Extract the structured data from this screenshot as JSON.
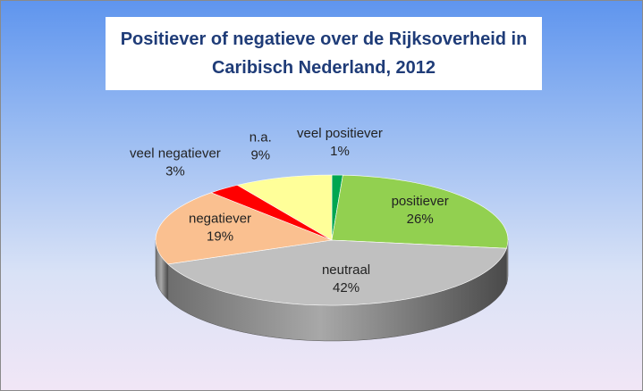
{
  "chart_data": {
    "type": "pie",
    "title": "Positiever of negatieve over de Rijksoverheid in\nCaribisch Nederland, 2012",
    "categories": [
      "veel positiever",
      "positiever",
      "neutraal",
      "negatiever",
      "veel negatiever",
      "n.a."
    ],
    "values": [
      1,
      26,
      42,
      19,
      3,
      9
    ],
    "value_labels": [
      "1%",
      "26%",
      "42%",
      "19%",
      "3%",
      "9%"
    ],
    "colors": [
      "#00a650",
      "#92d050",
      "#c0c0c0",
      "#fac090",
      "#ff0000",
      "#ffff99"
    ]
  }
}
